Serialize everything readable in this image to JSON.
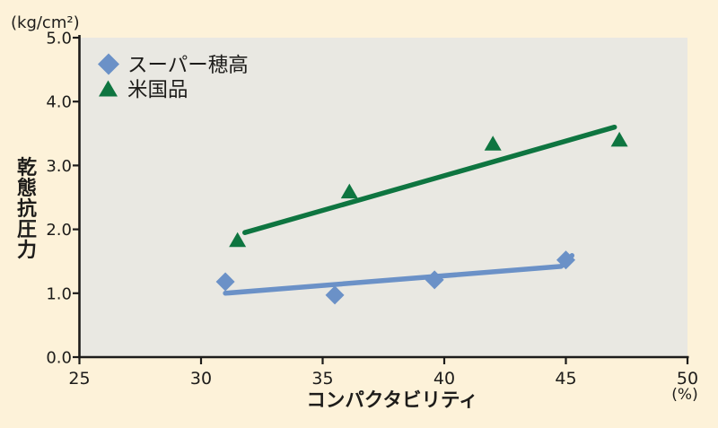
{
  "colors": {
    "background": "#fdf2d9",
    "plot_background": "#e9e8e2",
    "axis": "#1d1c1a",
    "text": "#1d1c1a",
    "series_super_hotaka": "#6b91c7",
    "series_us": "#0e7540"
  },
  "chart_data": {
    "type": "scatter",
    "title": "",
    "grid": false,
    "legend_position": "top-left-inside",
    "x_axis": {
      "label": "コンパクタビリティ",
      "unit": "(%)",
      "range": [
        25,
        50
      ],
      "tick_values": [
        25,
        30,
        35,
        40,
        45,
        50
      ],
      "tick_labels": [
        "25",
        "30",
        "35",
        "40",
        "45",
        "50"
      ]
    },
    "y_axis": {
      "label": "乾態抗圧力",
      "unit": "(kg/cm²)",
      "range": [
        0,
        5
      ],
      "tick_values": [
        0,
        1,
        2,
        3,
        4,
        5
      ],
      "tick_labels": [
        "0.0",
        "1.0",
        "2.0",
        "3.0",
        "4.0",
        "5.0"
      ]
    },
    "series": [
      {
        "name": "スーパー穂高",
        "marker": "diamond",
        "color": "#6b91c7",
        "points": [
          [
            31,
            1.18
          ],
          [
            35.5,
            0.97
          ],
          [
            39.6,
            1.21
          ],
          [
            45,
            1.52
          ]
        ],
        "trend_line": [
          [
            31.0,
            1.0
          ],
          [
            44.8,
            1.42
          ],
          [
            45.25,
            1.59
          ]
        ]
      },
      {
        "name": "米国品",
        "marker": "triangle",
        "color": "#0e7540",
        "points": [
          [
            31.5,
            1.83
          ],
          [
            36.1,
            2.59
          ],
          [
            42,
            3.34
          ],
          [
            47.2,
            3.4
          ]
        ],
        "trend_line": [
          [
            31.8,
            1.95
          ],
          [
            47.0,
            3.6
          ]
        ]
      }
    ]
  }
}
